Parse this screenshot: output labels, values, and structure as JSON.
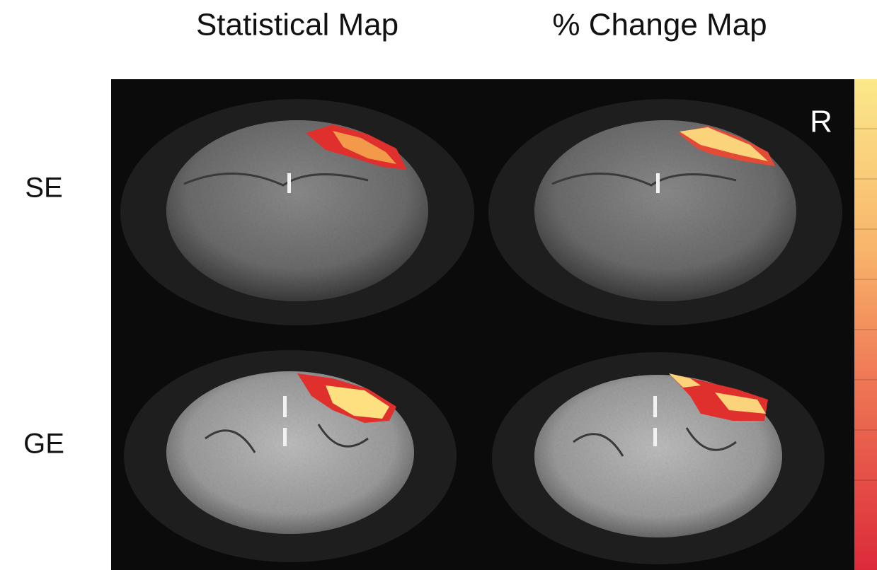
{
  "columns": [
    "Statistical Map",
    "% Change Map"
  ],
  "rows": [
    "SE",
    "GE"
  ],
  "orientation_label": "R"
}
